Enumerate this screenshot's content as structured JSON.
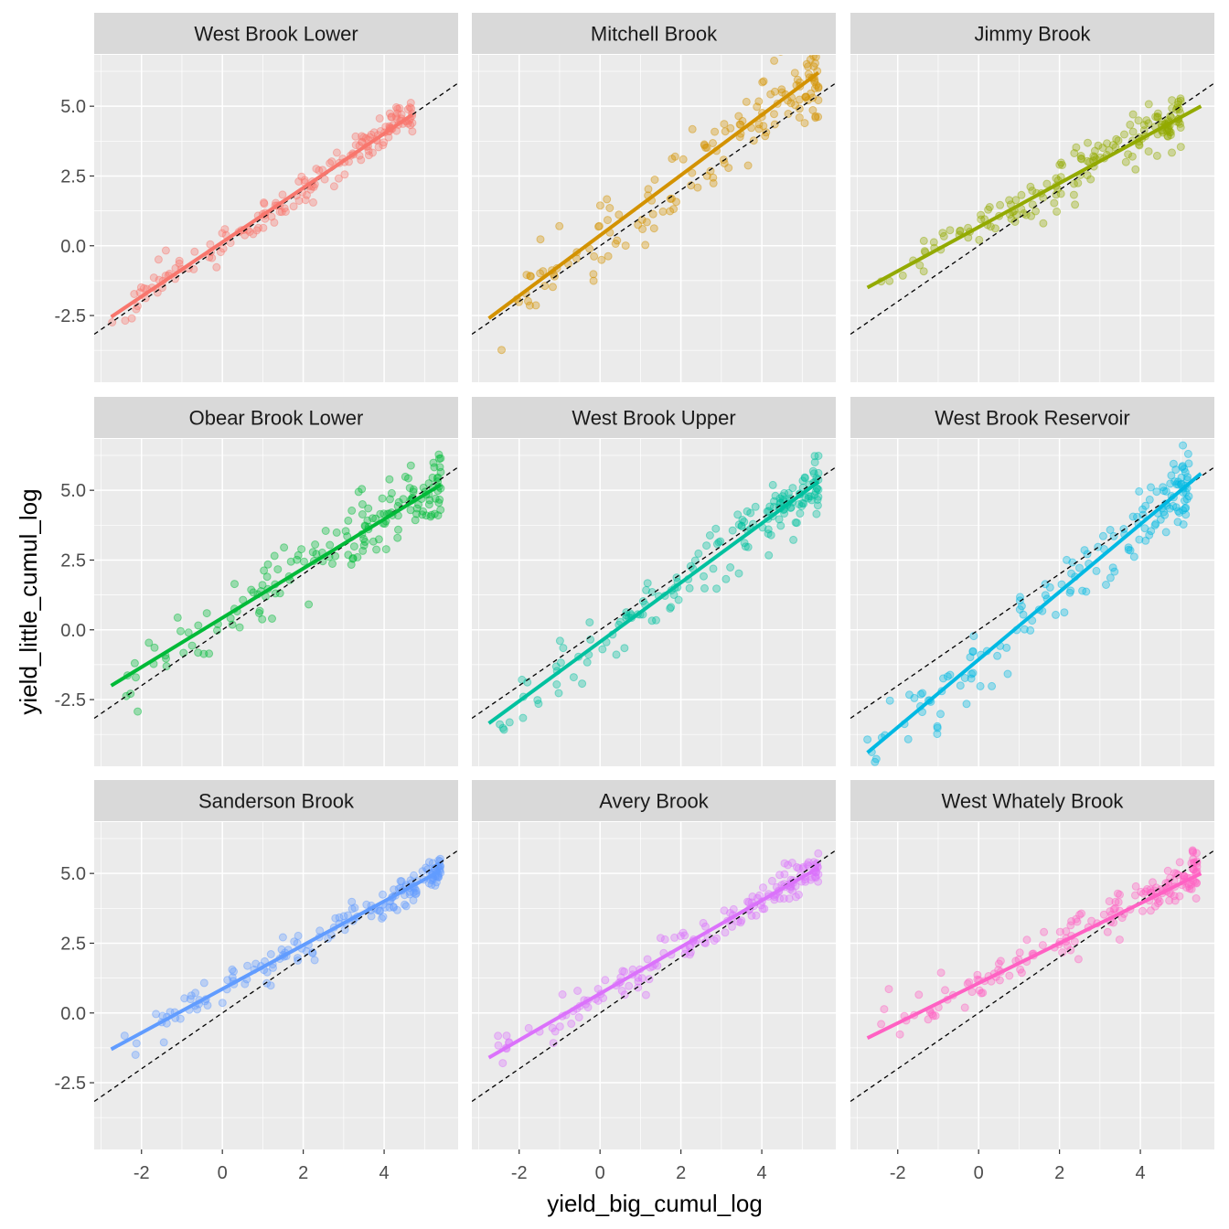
{
  "chart_data": {
    "type": "scatter",
    "xlabel": "yield_big_cumul_log",
    "ylabel": "yield_little_cumul_log",
    "xlim": [
      -3.17,
      5.83
    ],
    "ylim": [
      -4.89,
      6.84
    ],
    "x_ticks": [
      -2,
      0,
      2,
      4
    ],
    "x_tick_labels": [
      "-2",
      "0",
      "2",
      "4"
    ],
    "y_ticks": [
      -2.5,
      0,
      2.5,
      5
    ],
    "y_tick_labels": [
      "-2.5",
      "0.0",
      "2.5",
      "5.0"
    ],
    "grid": true,
    "reference_line": {
      "slope": 1,
      "intercept": 0,
      "style": "dashed"
    },
    "legend": "none",
    "panels": [
      {
        "name": "West Brook Lower",
        "color": "#F8766D",
        "fit": [
          [
            -2.75,
            -2.55
          ],
          [
            4.7,
            4.7
          ]
        ],
        "x_range": [
          -2.75,
          4.7
        ],
        "n": 170,
        "noise": 0.3,
        "seed": 11
      },
      {
        "name": "Mitchell Brook",
        "color": "#D39200",
        "fit": [
          [
            -2.75,
            -2.6
          ],
          [
            5.4,
            6.2
          ]
        ],
        "x_range": [
          -2.75,
          5.4
        ],
        "n": 160,
        "noise": 0.7,
        "seed": 23
      },
      {
        "name": "Jimmy Brook",
        "color": "#93AA00",
        "fit": [
          [
            -2.75,
            -1.5
          ],
          [
            5.5,
            5.0
          ]
        ],
        "x_range": [
          -2.75,
          5.0
        ],
        "n": 170,
        "noise": 0.45,
        "seed": 37
      },
      {
        "name": "Obear Brook Lower",
        "color": "#00BA38",
        "fit": [
          [
            -2.75,
            -2.0
          ],
          [
            5.4,
            5.2
          ]
        ],
        "x_range": [
          -2.75,
          5.4
        ],
        "n": 170,
        "noise": 0.6,
        "seed": 41
      },
      {
        "name": "West Brook Upper",
        "color": "#00C19F",
        "fit": [
          [
            -2.75,
            -3.35
          ],
          [
            5.4,
            5.3
          ]
        ],
        "x_range": [
          -2.75,
          5.4
        ],
        "n": 170,
        "noise": 0.5,
        "seed": 53
      },
      {
        "name": "West Brook Reservoir",
        "color": "#00B9E3",
        "fit": [
          [
            -2.75,
            -4.4
          ],
          [
            5.5,
            5.6
          ]
        ],
        "x_range": [
          -2.75,
          5.2
        ],
        "n": 160,
        "noise": 0.6,
        "seed": 67
      },
      {
        "name": "Sanderson Brook",
        "color": "#619CFF",
        "fit": [
          [
            -2.75,
            -1.3
          ],
          [
            5.4,
            5.1
          ]
        ],
        "x_range": [
          -2.75,
          5.4
        ],
        "n": 170,
        "noise": 0.3,
        "seed": 71
      },
      {
        "name": "Avery Brook",
        "color": "#DB72FB",
        "fit": [
          [
            -2.75,
            -1.6
          ],
          [
            5.4,
            5.2
          ]
        ],
        "x_range": [
          -2.75,
          5.4
        ],
        "n": 170,
        "noise": 0.3,
        "seed": 83
      },
      {
        "name": "West Whately Brook",
        "color": "#FF61C3",
        "fit": [
          [
            -2.75,
            -0.9
          ],
          [
            5.5,
            5.0
          ]
        ],
        "x_range": [
          -2.75,
          5.4
        ],
        "n": 170,
        "noise": 0.45,
        "seed": 97
      }
    ]
  }
}
